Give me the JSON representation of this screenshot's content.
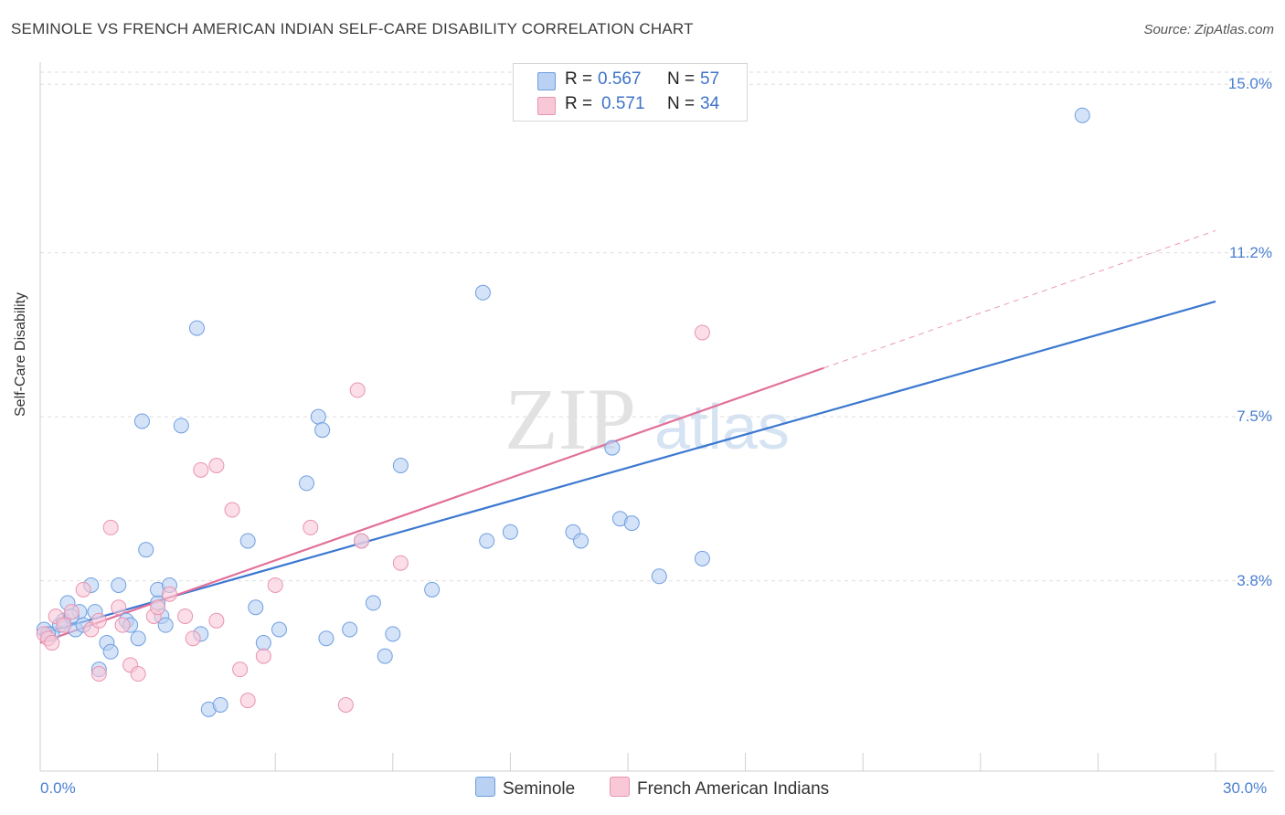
{
  "header": {
    "title": "SEMINOLE VS FRENCH AMERICAN INDIAN SELF-CARE DISABILITY CORRELATION CHART",
    "source": "Source: ZipAtlas.com"
  },
  "watermark": {
    "zip": "ZIP",
    "atlas": "atlas"
  },
  "legend_top": {
    "rows": [
      {
        "r_label": "R =",
        "r_value": "0.567",
        "n_label": "N =",
        "n_value": "57"
      },
      {
        "r_label": "R =",
        "r_value": "0.571",
        "n_label": "N =",
        "n_value": "34"
      }
    ]
  },
  "legend_bottom": [
    "Seminole",
    "French American Indians"
  ],
  "colors": {
    "seminole_fill": "#b9d1f3",
    "seminole_stroke": "#6f9fe0",
    "seminole_line": "#3b78d0",
    "french_fill": "#f8c8d7",
    "french_stroke": "#e994b0",
    "french_line": "#e2709a",
    "tick_text": "#4a7fd0"
  },
  "chart_data": {
    "type": "scatter",
    "title": "SEMINOLE VS FRENCH AMERICAN INDIAN SELF-CARE DISABILITY CORRELATION CHART",
    "xlabel": "",
    "ylabel": "Self-Care Disability",
    "xlim": [
      0,
      30
    ],
    "ylim": [
      0,
      15.5
    ],
    "x_tick_labels": [
      "0.0%",
      "30.0%"
    ],
    "y_ticks": [
      3.8,
      7.5,
      11.2,
      15.0
    ],
    "y_tick_labels": [
      "3.8%",
      "7.5%",
      "11.2%",
      "15.0%"
    ],
    "grid": "horizontal dashed",
    "legend": "top-center",
    "series": [
      {
        "name": "Seminole",
        "r": 0.567,
        "n": 57,
        "trend": {
          "x": [
            0,
            30
          ],
          "y": [
            2.6,
            10.1
          ],
          "style": "solid"
        },
        "points": [
          [
            0.1,
            2.7
          ],
          [
            0.3,
            2.6
          ],
          [
            0.5,
            2.8
          ],
          [
            0.6,
            2.9
          ],
          [
            0.7,
            3.3
          ],
          [
            0.9,
            2.7
          ],
          [
            1.0,
            3.1
          ],
          [
            1.1,
            2.8
          ],
          [
            1.3,
            3.7
          ],
          [
            1.4,
            3.1
          ],
          [
            1.5,
            1.8
          ],
          [
            1.7,
            2.4
          ],
          [
            1.8,
            2.2
          ],
          [
            2.0,
            3.7
          ],
          [
            2.2,
            2.9
          ],
          [
            2.3,
            2.8
          ],
          [
            2.5,
            2.5
          ],
          [
            2.6,
            7.4
          ],
          [
            2.7,
            4.5
          ],
          [
            3.0,
            3.3
          ],
          [
            3.0,
            3.6
          ],
          [
            3.1,
            3.0
          ],
          [
            3.2,
            2.8
          ],
          [
            3.3,
            3.7
          ],
          [
            3.6,
            7.3
          ],
          [
            4.0,
            9.5
          ],
          [
            4.1,
            2.6
          ],
          [
            4.3,
            0.9
          ],
          [
            4.6,
            1.0
          ],
          [
            5.3,
            4.7
          ],
          [
            5.5,
            3.2
          ],
          [
            5.7,
            2.4
          ],
          [
            6.1,
            2.7
          ],
          [
            6.8,
            6.0
          ],
          [
            7.1,
            7.5
          ],
          [
            7.2,
            7.2
          ],
          [
            7.3,
            2.5
          ],
          [
            7.9,
            2.7
          ],
          [
            8.2,
            4.7
          ],
          [
            8.5,
            3.3
          ],
          [
            8.8,
            2.1
          ],
          [
            9.0,
            2.6
          ],
          [
            9.2,
            6.4
          ],
          [
            10.0,
            3.6
          ],
          [
            11.3,
            10.3
          ],
          [
            11.4,
            4.7
          ],
          [
            12.0,
            4.9
          ],
          [
            13.6,
            4.9
          ],
          [
            13.8,
            4.7
          ],
          [
            14.6,
            6.8
          ],
          [
            14.8,
            5.2
          ],
          [
            15.1,
            5.1
          ],
          [
            15.8,
            3.9
          ],
          [
            16.9,
            4.3
          ],
          [
            26.6,
            14.3
          ],
          [
            0.2,
            2.6
          ],
          [
            0.8,
            3.0
          ]
        ]
      },
      {
        "name": "French American Indians",
        "r": 0.571,
        "n": 34,
        "trend": {
          "x": [
            0,
            20
          ],
          "y": [
            2.4,
            8.6
          ],
          "style": "solid"
        },
        "trend_extension": {
          "x": [
            20,
            30
          ],
          "y": [
            8.6,
            11.7
          ],
          "style": "dashed"
        },
        "points": [
          [
            0.1,
            2.6
          ],
          [
            0.2,
            2.5
          ],
          [
            0.4,
            3.0
          ],
          [
            0.6,
            2.8
          ],
          [
            0.8,
            3.1
          ],
          [
            1.1,
            3.6
          ],
          [
            1.3,
            2.7
          ],
          [
            1.5,
            1.7
          ],
          [
            1.5,
            2.9
          ],
          [
            1.8,
            5.0
          ],
          [
            2.0,
            3.2
          ],
          [
            2.1,
            2.8
          ],
          [
            2.3,
            1.9
          ],
          [
            2.5,
            1.7
          ],
          [
            2.9,
            3.0
          ],
          [
            3.0,
            3.2
          ],
          [
            3.3,
            3.5
          ],
          [
            3.7,
            3.0
          ],
          [
            3.9,
            2.5
          ],
          [
            4.1,
            6.3
          ],
          [
            4.5,
            6.4
          ],
          [
            4.5,
            2.9
          ],
          [
            4.9,
            5.4
          ],
          [
            5.1,
            1.8
          ],
          [
            5.3,
            1.1
          ],
          [
            5.7,
            2.1
          ],
          [
            6.0,
            3.7
          ],
          [
            6.9,
            5.0
          ],
          [
            7.8,
            1.0
          ],
          [
            8.1,
            8.1
          ],
          [
            8.2,
            4.7
          ],
          [
            9.2,
            4.2
          ],
          [
            16.9,
            9.4
          ],
          [
            0.3,
            2.4
          ]
        ]
      }
    ]
  }
}
